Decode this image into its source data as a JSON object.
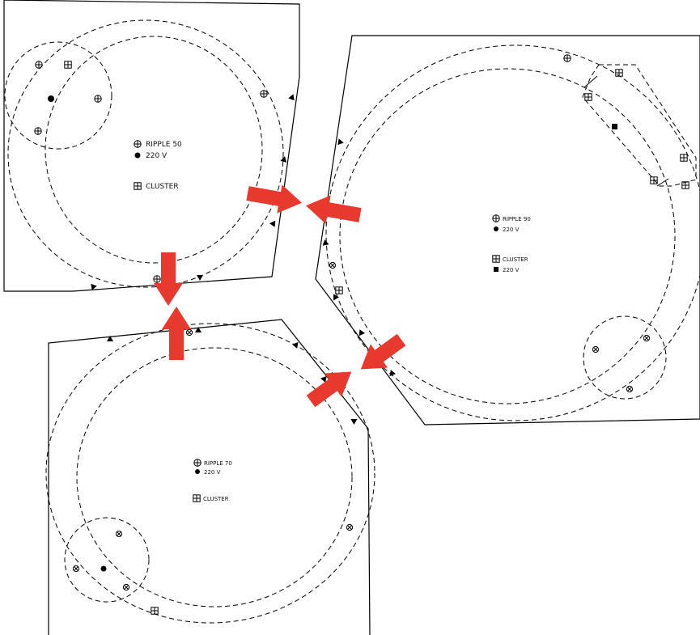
{
  "panels": {
    "top_left": {
      "ripple_label": "RIPPLE 50",
      "voltage_label": "220 V",
      "cluster_label": "CLUSTER"
    },
    "right": {
      "ripple_label": "RIPPLE 90",
      "ripple_voltage_label": "220 V",
      "cluster_label": "CLUSTER",
      "cluster_voltage_label": "220 V"
    },
    "bottom_left": {
      "ripple_label": "RIPPLE 70",
      "voltage_label": "220 V",
      "cluster_label": "CLUSTER"
    }
  },
  "colors": {
    "arrow": "#e8392f",
    "line": "#000000",
    "background": "#ffffff"
  },
  "icons": {
    "ripple": "circle-plus-icon",
    "voltage": "filled-dot-icon",
    "cluster": "boxed-plus-icon",
    "square_voltage": "filled-square-icon",
    "fixture": "circle-x-icon",
    "direction": "triangle-icon"
  }
}
